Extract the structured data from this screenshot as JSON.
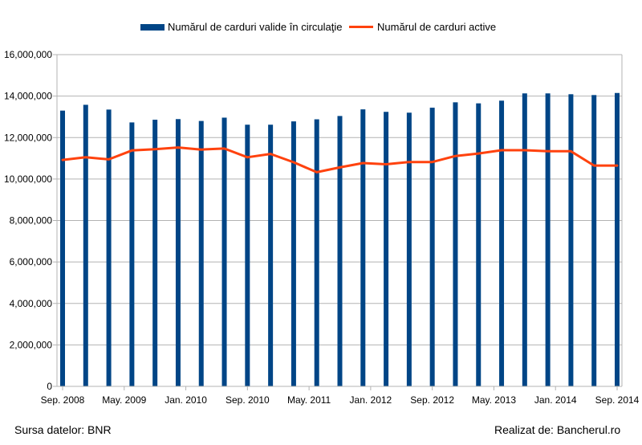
{
  "chart_data": {
    "type": "bar",
    "x_labels": [
      "Sep. 2008",
      "May. 2009",
      "Jan. 2010",
      "Sep. 2010",
      "May. 2011",
      "Jan. 2012",
      "Sep. 2012",
      "May. 2013",
      "Jan. 2014",
      "Sep. 2014"
    ],
    "ylim": [
      0,
      16000000
    ],
    "y_ticks": [
      "0",
      "2,000,000",
      "4,000,000",
      "6,000,000",
      "8,000,000",
      "10,000,000",
      "12,000,000",
      "14,000,000",
      "16,000,000"
    ],
    "grid": true,
    "legend_position": "top",
    "series": [
      {
        "name": "Numărul de carduri valide în circulaţie",
        "type": "bar",
        "color": "#004586",
        "values": [
          13300000,
          13580000,
          13350000,
          12730000,
          12860000,
          12890000,
          12800000,
          12960000,
          12620000,
          12620000,
          12780000,
          12880000,
          13040000,
          13360000,
          13240000,
          13200000,
          13440000,
          13700000,
          13650000,
          13780000,
          14130000,
          14130000,
          14090000,
          14050000,
          14150000
        ]
      },
      {
        "name": "Numărul de carduri active",
        "type": "line",
        "color": "#ff420e",
        "values": [
          10920000,
          11050000,
          10950000,
          11380000,
          11440000,
          11520000,
          11420000,
          11470000,
          11050000,
          11210000,
          10810000,
          10330000,
          10560000,
          10770000,
          10710000,
          10820000,
          10820000,
          11110000,
          11230000,
          11390000,
          11390000,
          11340000,
          11340000,
          10650000,
          10650000
        ]
      }
    ]
  },
  "footer": {
    "source": "Sursa datelor: BNR",
    "author": "Realizat de: Bancherul.ro"
  }
}
